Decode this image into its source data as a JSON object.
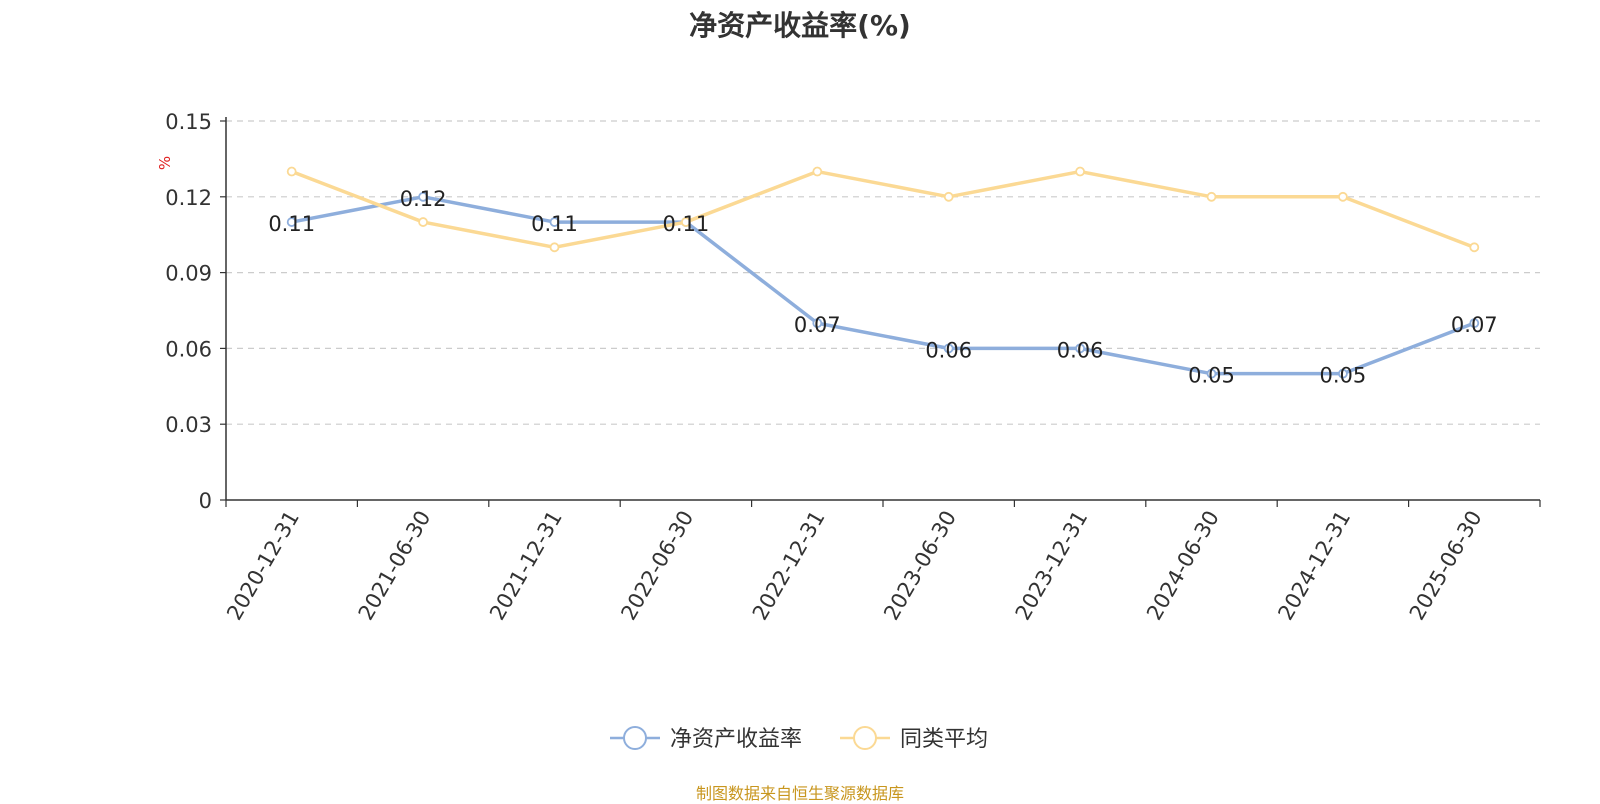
{
  "chart_data": {
    "type": "line",
    "title": "净资产收益率(%)",
    "ylabel": "%",
    "xlabel": "",
    "categories": [
      "2020-12-31",
      "2021-06-30",
      "2021-12-31",
      "2022-06-30",
      "2022-12-31",
      "2023-06-30",
      "2023-12-31",
      "2024-06-30",
      "2024-12-31",
      "2025-06-30"
    ],
    "ylim": [
      0,
      0.15
    ],
    "yticks": [
      "0",
      "0.03",
      "0.06",
      "0.09",
      "0.12",
      "0.15"
    ],
    "series": [
      {
        "name": "净资产收益率",
        "color": "#8eaedc",
        "show_labels": true,
        "values": [
          0.11,
          0.12,
          0.11,
          0.11,
          0.07,
          0.06,
          0.06,
          0.05,
          0.05,
          0.07
        ],
        "labels": [
          "0.11",
          "0.12",
          "0.11",
          "0.11",
          "0.07",
          "0.06",
          "0.06",
          "0.05",
          "0.05",
          "0.07"
        ]
      },
      {
        "name": "同类平均",
        "color": "#fbd994",
        "show_labels": false,
        "values": [
          0.13,
          0.11,
          0.1,
          0.11,
          0.13,
          0.12,
          0.13,
          0.12,
          0.12,
          0.1
        ]
      }
    ],
    "grid": true,
    "legend_position": "bottom-center"
  },
  "source_note": "制图数据来自恒生聚源数据库"
}
